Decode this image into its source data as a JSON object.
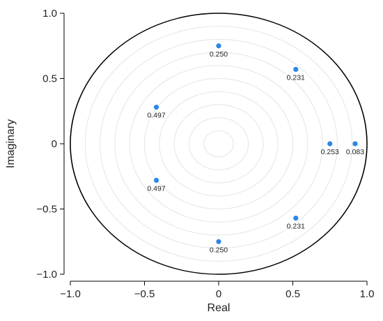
{
  "chart_data": {
    "type": "scatter",
    "title": "",
    "xlabel": "Real",
    "ylabel": "Imaginary",
    "xlim": [
      -1.0,
      1.0
    ],
    "ylim": [
      -1.0,
      1.0
    ],
    "x_ticks": [
      -1.0,
      -0.5,
      0,
      0.5,
      1.0
    ],
    "x_tick_labels": [
      "−1.0",
      "−0.5",
      "0",
      "0.5",
      "1.0"
    ],
    "y_ticks": [
      1.0,
      0.5,
      0,
      -0.5,
      -1.0
    ],
    "y_tick_labels": [
      "1.0",
      "0.5",
      "0",
      "−0.5",
      "−1.0"
    ],
    "unit_circle": true,
    "grid": "concentric rings",
    "grid_rings": [
      0.1,
      0.2,
      0.3,
      0.4,
      0.5,
      0.6,
      0.7,
      0.8,
      0.9
    ],
    "points": [
      {
        "x": 0.0,
        "y": 0.75,
        "label": "0.250"
      },
      {
        "x": 0.52,
        "y": 0.57,
        "label": "0.231"
      },
      {
        "x": -0.42,
        "y": 0.28,
        "label": "0.497"
      },
      {
        "x": 0.75,
        "y": 0.0,
        "label": "0.253"
      },
      {
        "x": 0.92,
        "y": 0.0,
        "label": "0.083"
      },
      {
        "x": -0.42,
        "y": -0.28,
        "label": "0.497"
      },
      {
        "x": 0.52,
        "y": -0.57,
        "label": "0.231"
      },
      {
        "x": 0.0,
        "y": -0.75,
        "label": "0.250"
      }
    ],
    "colors": {
      "point": "#2e86e6",
      "grid_ring": "#e2ebe8",
      "circle": "#000000"
    }
  }
}
